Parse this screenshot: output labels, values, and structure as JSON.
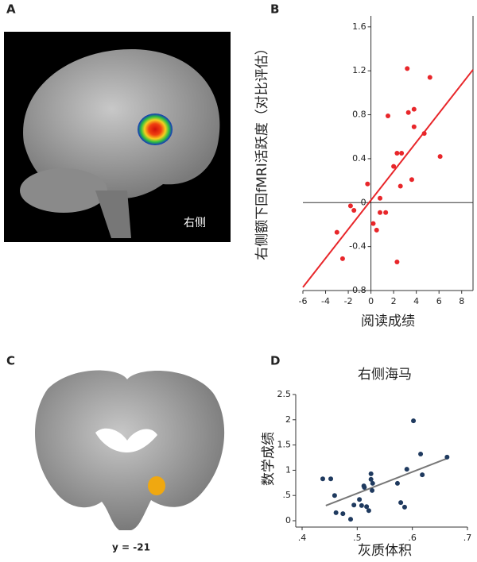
{
  "panels": {
    "A": {
      "label": "A",
      "caption": "右侧"
    },
    "B": {
      "label": "B"
    },
    "C": {
      "label": "C",
      "caption": "y = -21"
    },
    "D": {
      "label": "D"
    }
  },
  "chart_data": [
    {
      "type": "scatter",
      "ylabel": "右侧额下回fMRI活跃度（对比评估）",
      "xlabel": "阅读成绩",
      "axis_position": "origin",
      "color": "#e8262a",
      "x": [
        3.2,
        5.2,
        1.5,
        3.8,
        3.3,
        3.8,
        4.7,
        2.3,
        2.7,
        2.0,
        6.1,
        3.6,
        2.6,
        -0.3,
        0.8,
        -1.8,
        -1.5,
        0.8,
        1.3,
        0.2,
        0.5,
        -3.0,
        -2.5,
        2.3
      ],
      "values": [
        1.22,
        1.14,
        0.79,
        0.85,
        0.82,
        0.69,
        0.63,
        0.45,
        0.45,
        0.33,
        0.42,
        0.21,
        0.15,
        0.17,
        0.04,
        -0.03,
        -0.07,
        -0.09,
        -0.09,
        -0.19,
        -0.25,
        -0.27,
        -0.51,
        -0.54
      ],
      "fit_line": {
        "x": [
          -6,
          9
        ],
        "y": [
          -0.77,
          1.21
        ],
        "color": "#e8262a"
      },
      "xlim": [
        -6,
        9
      ],
      "ylim": [
        -0.8,
        1.7
      ],
      "xticks": [
        -6,
        -4,
        -2,
        0,
        2,
        4,
        6,
        8
      ],
      "yticks": [
        -0.8,
        -0.4,
        0,
        0.4,
        0.8,
        1.2,
        1.6
      ]
    },
    {
      "type": "scatter",
      "title": "右侧海马",
      "ylabel": "数学成绩",
      "xlabel": "灰质体积",
      "axis_position": "left-bottom",
      "color": "#1f3a5f",
      "x": [
        0.4375,
        0.452,
        0.459,
        0.4615,
        0.474,
        0.488,
        0.494,
        0.504,
        0.508,
        0.512,
        0.517,
        0.513,
        0.521,
        0.525,
        0.527,
        0.525,
        0.528,
        0.573,
        0.579,
        0.586,
        0.59,
        0.602,
        0.615,
        0.618,
        0.663
      ],
      "values": [
        0.83,
        0.83,
        0.5,
        0.16,
        0.14,
        0.03,
        0.31,
        0.42,
        0.3,
        0.69,
        0.28,
        0.66,
        0.2,
        0.93,
        0.6,
        0.82,
        0.74,
        0.74,
        0.36,
        0.27,
        1.02,
        1.98,
        1.32,
        0.91,
        1.26
      ],
      "fit_line": {
        "x": [
          0.443,
          0.662
        ],
        "y": [
          0.3,
          1.23
        ],
        "color": "#777777"
      },
      "xlim": [
        0.4,
        0.7
      ],
      "ylim": [
        0,
        2.5
      ],
      "xticks": [
        {
          "value": 0.4,
          "label": ".4"
        },
        {
          "value": 0.5,
          "label": ".5"
        },
        {
          "value": 0.6,
          "label": ".6"
        },
        {
          "value": 0.7,
          "label": ".7"
        }
      ],
      "yticks": [
        0,
        {
          "value": 0.5,
          "label": ".5"
        },
        1,
        1.5,
        2,
        2.5
      ]
    }
  ]
}
